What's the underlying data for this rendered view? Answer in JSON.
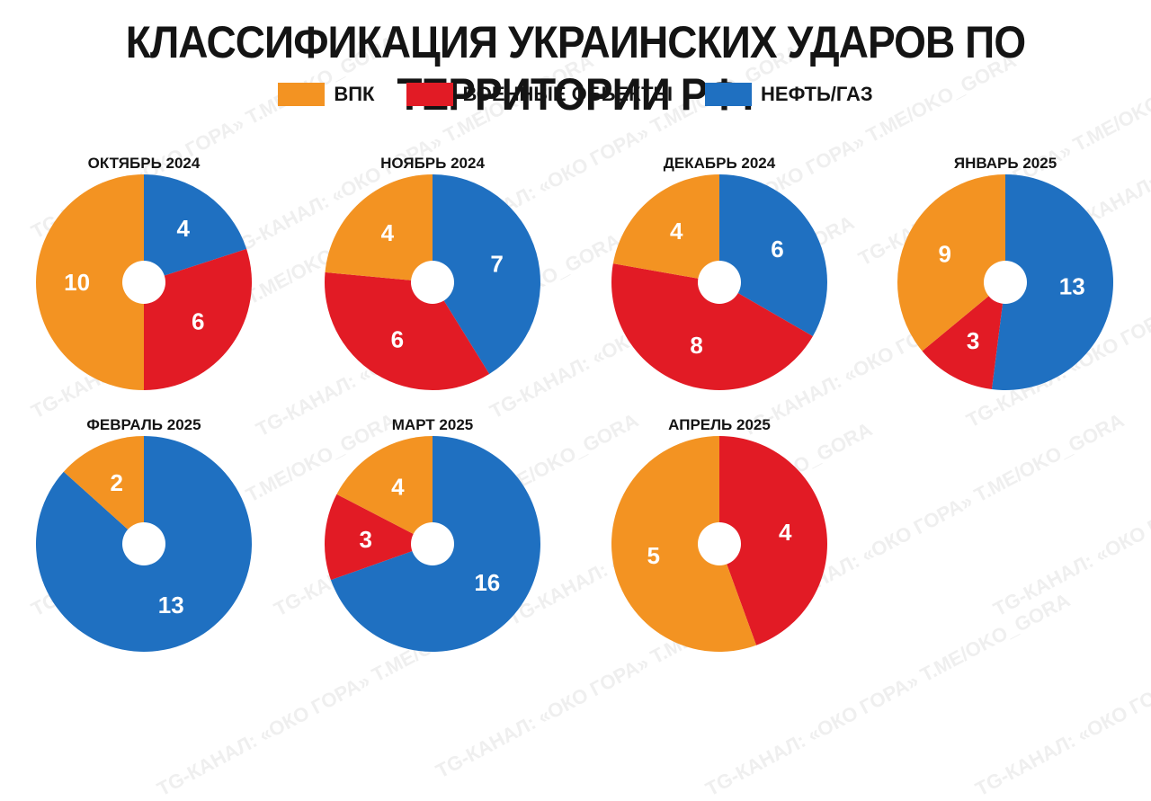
{
  "title": "КЛАССИФИКАЦИЯ  УКРАИНСКИХ УДАРОВ ПО ТЕРРИТОРИИ РФ:",
  "legend": [
    {
      "label": "ВПК",
      "color": "#f39322"
    },
    {
      "label": "ВОЕННЫЕ ОБЬЕКТЫ",
      "color": "#e21b25"
    },
    {
      "label": "НЕФТЬ/ГАЗ",
      "color": "#1f70c1"
    }
  ],
  "watermark": "TG-КАНАЛ: «ОКО ГОРА» T.ME/OKO_GORA",
  "chart_data": [
    {
      "type": "pie",
      "title": "ОКТЯБРЬ 2024",
      "categories": [
        "НЕФТЬ/ГАЗ",
        "ВОЕННЫЕ ОБЬЕКТЫ",
        "ВПК"
      ],
      "values": [
        4,
        6,
        10
      ]
    },
    {
      "type": "pie",
      "title": "НОЯБРЬ 2024",
      "categories": [
        "НЕФТЬ/ГАЗ",
        "ВОЕННЫЕ ОБЬЕКТЫ",
        "ВПК"
      ],
      "values": [
        7,
        6,
        4
      ]
    },
    {
      "type": "pie",
      "title": "ДЕКАБРЬ 2024",
      "categories": [
        "НЕФТЬ/ГАЗ",
        "ВОЕННЫЕ ОБЬЕКТЫ",
        "ВПК"
      ],
      "values": [
        6,
        8,
        4
      ]
    },
    {
      "type": "pie",
      "title": "ЯНВАРЬ 2025",
      "categories": [
        "НЕФТЬ/ГАЗ",
        "ВОЕННЫЕ ОБЬЕКТЫ",
        "ВПК"
      ],
      "values": [
        13,
        3,
        9
      ]
    },
    {
      "type": "pie",
      "title": "ФЕВРАЛЬ 2025",
      "categories": [
        "НЕФТЬ/ГАЗ",
        "ВПК"
      ],
      "values": [
        13,
        2
      ]
    },
    {
      "type": "pie",
      "title": "МАРТ 2025",
      "categories": [
        "НЕФТЬ/ГАЗ",
        "ВОЕННЫЕ ОБЬЕКТЫ",
        "ВПК"
      ],
      "values": [
        16,
        3,
        4
      ]
    },
    {
      "type": "pie",
      "title": "АПРЕЛЬ 2025",
      "categories": [
        "ВОЕННЫЕ ОБЬЕКТЫ",
        "ВПК"
      ],
      "values": [
        4,
        5
      ]
    }
  ]
}
